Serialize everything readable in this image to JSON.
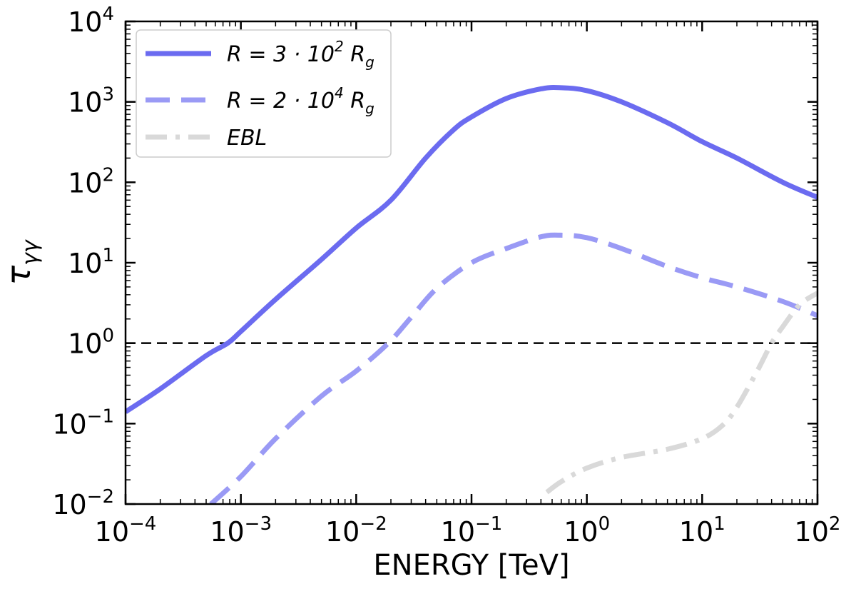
{
  "chart_data": {
    "type": "line",
    "title": "",
    "xlabel": "ENERGY [TeV]",
    "ylabel_base": "τ",
    "ylabel_sub": "γγ",
    "xscale": "log",
    "yscale": "log",
    "xlim": [
      0.0001,
      100
    ],
    "ylim": [
      0.01,
      10000
    ],
    "x_ticks": [
      {
        "base": "10",
        "exp": "−4",
        "value": 0.0001
      },
      {
        "base": "10",
        "exp": "−3",
        "value": 0.001
      },
      {
        "base": "10",
        "exp": "−2",
        "value": 0.01
      },
      {
        "base": "10",
        "exp": "−1",
        "value": 0.1
      },
      {
        "base": "10",
        "exp": "0",
        "value": 1
      },
      {
        "base": "10",
        "exp": "1",
        "value": 10
      },
      {
        "base": "10",
        "exp": "2",
        "value": 100
      }
    ],
    "y_ticks": [
      {
        "base": "10",
        "exp": "−2",
        "value": 0.01
      },
      {
        "base": "10",
        "exp": "−1",
        "value": 0.1
      },
      {
        "base": "10",
        "exp": "0",
        "value": 1
      },
      {
        "base": "10",
        "exp": "1",
        "value": 10
      },
      {
        "base": "10",
        "exp": "2",
        "value": 100
      },
      {
        "base": "10",
        "exp": "3",
        "value": 1000
      },
      {
        "base": "10",
        "exp": "4",
        "value": 10000
      }
    ],
    "reference_line": {
      "y": 1,
      "style": "dashed",
      "color": "#000000"
    },
    "legend_position": "top-left",
    "series": [
      {
        "name": "R = 3 · 10² R_g",
        "legend": {
          "pre": "R = 3 · 10",
          "sup": "2",
          "mid": " R",
          "sub": "g"
        },
        "style": "solid",
        "color": "#6b6bf0",
        "x": [
          0.0001,
          0.0002,
          0.0005,
          0.00077,
          0.001,
          0.002,
          0.005,
          0.01,
          0.02,
          0.04,
          0.07,
          0.1,
          0.2,
          0.4,
          0.6,
          1,
          2,
          5,
          10,
          20,
          50,
          100
        ],
        "y": [
          0.14,
          0.27,
          0.7,
          1.0,
          1.4,
          3.5,
          11,
          27,
          60,
          200,
          450,
          650,
          1100,
          1450,
          1500,
          1380,
          1000,
          550,
          320,
          200,
          100,
          65
        ]
      },
      {
        "name": "R = 2 · 10⁴ R_g",
        "legend": {
          "pre": "R = 2 · 10",
          "sup": "4",
          "mid": " R",
          "sub": "g"
        },
        "style": "dashed",
        "color": "#9a9af5",
        "x": [
          0.00055,
          0.001,
          0.002,
          0.005,
          0.01,
          0.019,
          0.03,
          0.05,
          0.1,
          0.2,
          0.4,
          0.6,
          1,
          2,
          5,
          10,
          20,
          50,
          100
        ],
        "y": [
          0.01,
          0.022,
          0.065,
          0.22,
          0.45,
          1.0,
          2.1,
          4.8,
          10,
          15,
          21,
          22,
          20.5,
          15,
          9,
          6.5,
          5,
          3.3,
          2.2
        ]
      },
      {
        "name": "EBL",
        "legend": {
          "pre": "EBL",
          "sup": "",
          "mid": "",
          "sub": ""
        },
        "style": "dashdot",
        "color": "#d9d9d9",
        "x": [
          0.45,
          0.6,
          1,
          2,
          5,
          10,
          15,
          20,
          30,
          40,
          50,
          70,
          100
        ],
        "y": [
          0.014,
          0.019,
          0.028,
          0.038,
          0.048,
          0.065,
          0.095,
          0.16,
          0.45,
          1.0,
          1.6,
          3.0,
          4.2
        ]
      }
    ]
  }
}
